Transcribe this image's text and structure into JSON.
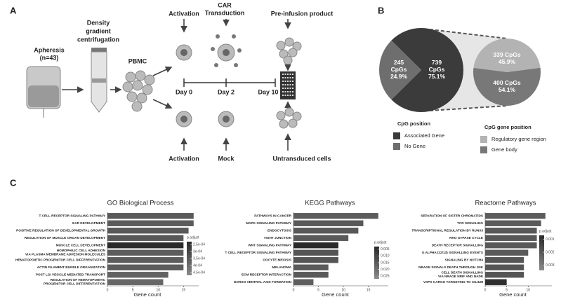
{
  "diagram": {
    "panel_a": "A",
    "panel_b": "B",
    "panel_c": "C",
    "apheresis": [
      "Apheresis",
      "(n=43)"
    ],
    "density": [
      "Density",
      "gradient",
      "centrifugation"
    ],
    "pbmc": "PBMC",
    "top_activation": "Activation",
    "car": [
      "CAR",
      "Transduction"
    ],
    "pre_infusion": "Pre-infusion product",
    "days": [
      "Day 0",
      "Day 2",
      "Day 10"
    ],
    "bottom_activation": "Activation",
    "mock": "Mock",
    "untransduced": "Untransduced cells"
  },
  "chart_data": [
    {
      "type": "pie",
      "legend_title": "CpG position",
      "categories": [
        "Associated Gene",
        "No Gene"
      ],
      "values": [
        739,
        245
      ],
      "value_labels": [
        "739\nCpGs\n75.1%",
        "245\nCpGs\n24.9%"
      ],
      "colors": [
        "#3b3b3b",
        "#6e6e6e"
      ]
    },
    {
      "type": "pie",
      "legend_title": "CpG gene position",
      "categories": [
        "Regulatory gene region",
        "Gene body"
      ],
      "values": [
        339,
        400
      ],
      "value_labels": [
        "339 CpGs\n45.9%",
        "400 CpGs\n54.1%"
      ],
      "colors": [
        "#b3b3b3",
        "#787878"
      ]
    },
    {
      "type": "bar",
      "title": "GO Biological Process",
      "xlabel": "Gene count",
      "categories": [
        "T CELL RECEPTOR SIGNALING PATHWAY",
        "EAR DEVELOPMENT",
        "POSITIVE REGULATION OF DEVELOPMENTAL GROWTH",
        "REGULATION OF MUSCLE ORGAN DEVELOPMENT",
        "MUSCLE CELL DEVELOPMENT",
        "HOMOPHILIC CELL ADHESION\nVIA PLASMA MEMBRANE ADHESION MOLECULES",
        "HEMATOPOIETIC PROGENITOR CELL DIFFERENTIATION",
        "ACTIN FILAMENT BUNDLE ORGANIZATION",
        "POST LGI VESICLE MEDIATED TRANSPORT",
        "REGULATION OF HEMATOPOIETIC\nPROGENITOR CELL DIFFERENTIATION"
      ],
      "values": [
        17,
        17,
        16,
        15,
        15,
        15,
        15,
        15,
        12,
        11
      ],
      "colors": [
        "#5a5a5a",
        "#5a5a5a",
        "#585858",
        "#585858",
        "#2a2a2a",
        "#5c5c5c",
        "#5c5c5c",
        "#5c5c5c",
        "#626262",
        "#666666"
      ],
      "xlim": [
        0,
        18
      ],
      "xticks": [
        0,
        5,
        10,
        15
      ],
      "colorbar": {
        "title": "p.adjust",
        "lim": [
          0.00023,
          0.00047
        ],
        "colors": [
          "#2a2a2a",
          "#8a8a8a"
        ],
        "ticks": [
          {
            "value": 0.00025,
            "label": "2.5e-04"
          },
          {
            "value": 0.0003,
            "label": "3e-04"
          },
          {
            "value": 0.00035,
            "label": "3.5e-04"
          },
          {
            "value": 0.0004,
            "label": "4e-04"
          },
          {
            "value": 0.00045,
            "label": "4.5e-04"
          }
        ]
      }
    },
    {
      "type": "bar",
      "title": "KEGG Pathways",
      "xlabel": "Gene count",
      "categories": [
        "PATHWAYS IN CANCER",
        "MAPK SIGNALING PATHWAY",
        "ENDOCYTOSIS",
        "TIGHT JUNCTION",
        "WNT SIGNALING PATHWAY",
        "T CELL RECEPTOR SIGNALING PATHWAY",
        "OOCYTE MEIOSIS",
        "MELANOMA",
        "ECM RECEPTOR INTERACTION",
        "DORSO VENTRAL AXIS FORMATION"
      ],
      "values": [
        17,
        14,
        13,
        11,
        9,
        9,
        9,
        7,
        7,
        4
      ],
      "colors": [
        "#5c5c5c",
        "#585858",
        "#585858",
        "#5a5a5a",
        "#2a2a2a",
        "#555555",
        "#555555",
        "#5a5a5a",
        "#5a5a5a",
        "#5e5e5e"
      ],
      "xlim": [
        0,
        19
      ],
      "xticks": [
        0,
        5,
        10,
        15
      ],
      "colorbar": {
        "title": "p.adjust",
        "lim": [
          0.003,
          0.027
        ],
        "colors": [
          "#2a2a2a",
          "#8a8a8a"
        ],
        "ticks": [
          0.005,
          {
            "value": 0.01,
            "label": "0.010"
          },
          0.015,
          {
            "value": 0.02,
            "label": "0.020"
          },
          0.025
        ]
      }
    },
    {
      "type": "bar",
      "title": "Reactome Pathways",
      "xlabel": "Gene count",
      "categories": [
        "SEPARATION OF SISTER CHROMATIDS",
        "TCR SIGNALING",
        "TRANSCRIPTIONAL REGULATION BY RUNX3",
        "RHO GTPASE CYCLE",
        "DEATH RECEPTOR SIGNALLING",
        "G ALPHA (12/13) SIGNALLING EVENTS",
        "SIGNALING BY NOTCH4",
        "NRAGE SIGNALS DEATH THROUGH JNK",
        "CELL DEATH SIGNALLING\nVIA NRAGE NRIF AND NADE",
        "VXPX CARGO TARGETING TO CILIUM"
      ],
      "values": [
        14,
        13,
        12,
        12,
        12,
        10,
        9,
        9,
        9,
        5
      ],
      "colors": [
        "#5c5c5c",
        "#5a5a5a",
        "#585858",
        "#585858",
        "#585858",
        "#5a5a5a",
        "#555555",
        "#555555",
        "#555555",
        "#2e2e2e"
      ],
      "xlim": [
        0,
        15.5
      ],
      "xticks": [
        0,
        5,
        10
      ],
      "colorbar": {
        "title": "p.adjust",
        "lim": [
          0.0007,
          0.0034
        ],
        "colors": [
          "#2a2a2a",
          "#8a8a8a"
        ],
        "ticks": [
          0.001,
          0.002,
          0.003
        ]
      }
    }
  ]
}
